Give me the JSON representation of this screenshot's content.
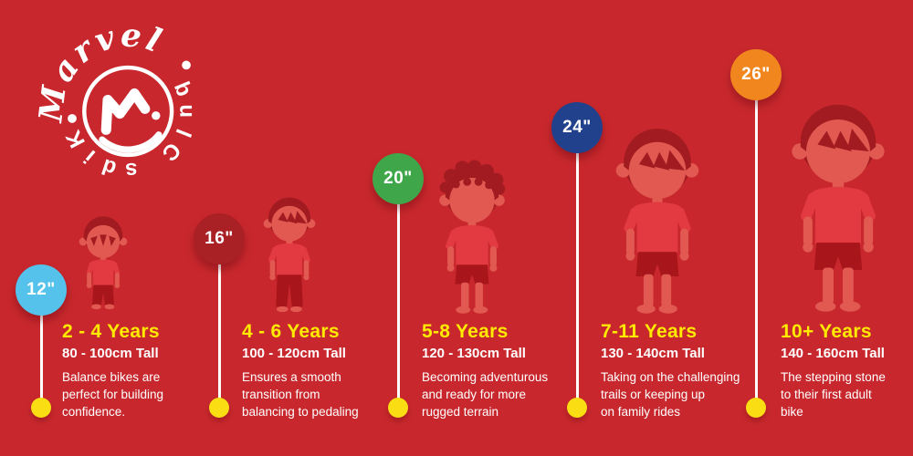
{
  "brand": {
    "line1": "Marvel",
    "line2": "Kids Club"
  },
  "columns": [
    {
      "wheel": "12\"",
      "badge_color": "#54C2EB",
      "age": "2 - 4 Years",
      "height": "80 - 100cm Tall",
      "description": "Balance bikes are\nperfect for building\nconfidence.",
      "figure": "toddler"
    },
    {
      "wheel": "16\"",
      "badge_color": "#A92025",
      "age": "4 - 6 Years",
      "height": "100 - 120cm Tall",
      "description": "Ensures a smooth\ntransition from\nbalancing to pedaling",
      "figure": "boy-pants"
    },
    {
      "wheel": "20\"",
      "badge_color": "#3FA74A",
      "age": "5-8 Years",
      "height": "120 - 130cm Tall",
      "description": "Becoming adventurous\nand ready for more\nrugged terrain",
      "figure": "boy-curly"
    },
    {
      "wheel": "24\"",
      "badge_color": "#21418C",
      "age": "7-11 Years",
      "height": "130 - 140cm Tall",
      "description": "Taking on the challenging\ntrails or keeping up\non family rides",
      "figure": "boy-shorts"
    },
    {
      "wheel": "26\"",
      "badge_color": "#F0861D",
      "age": "10+ Years",
      "height": "140 - 160cm Tall",
      "description": "The stepping stone\nto their first adult\nbike",
      "figure": "boy-shorts"
    }
  ],
  "colors": {
    "background": "#C8282D",
    "heading_yellow": "#FFEA00",
    "dot_yellow": "#FBDD14",
    "text_white": "#FFFFFF",
    "figure_skin": "#E25951",
    "figure_hair": "#A21B20",
    "figure_shirt": "#E23A40",
    "figure_shorts": "#A8151B",
    "logo_white": "#FFFFFF"
  }
}
